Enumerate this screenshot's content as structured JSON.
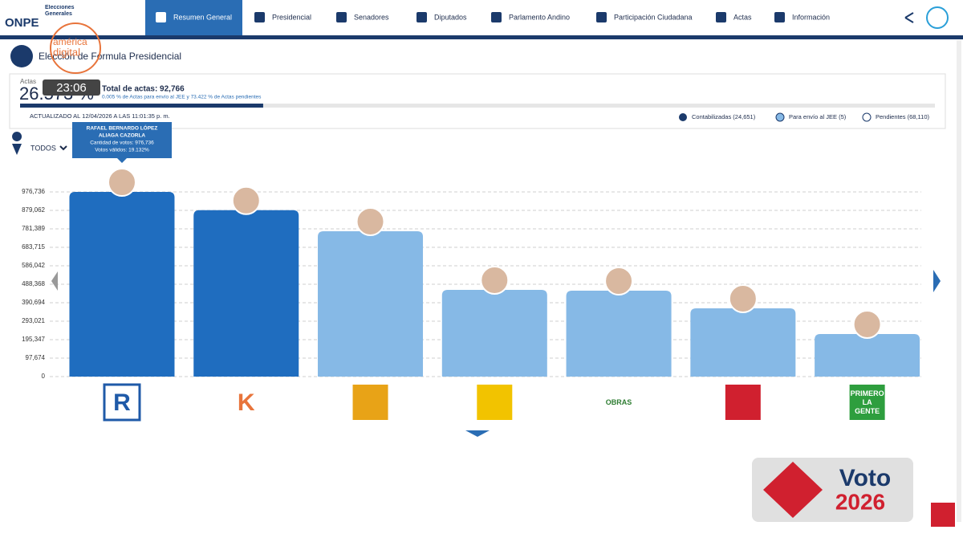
{
  "header": {
    "brand": "ONPE",
    "subtitle": "Elecciones Generales",
    "nav": [
      "Resumen General",
      "Presidencial",
      "Senadores",
      "Diputados",
      "Parlamento Andino",
      "Participación Ciudadana",
      "Actas",
      "Información"
    ]
  },
  "overlay": {
    "channel": [
      "américa",
      "digital"
    ],
    "clock": "23:06",
    "brand": [
      "Voto",
      "2026"
    ]
  },
  "title": "Elección de Fórmula Presidencial",
  "summary": {
    "actas_label": "Actas",
    "actas_percent": {
      "value": 26.573,
      "label": "26.573 %"
    },
    "total": "Total de actas: 92,766",
    "detail": "0.005 % de Actas para envío al JEE y 73.422 % de Actas pendientes",
    "updated": "ACTUALIZADO AL 12/04/2026 A LAS 11:01:35 p. m.",
    "legend": [
      "Contabilizadas (24,651)",
      "Para envío al JEE (5)",
      "Pendientes (68,110)"
    ]
  },
  "filter": "TODOS",
  "tooltip": {
    "name": [
      "RAFAEL BERNARDO LÓPEZ",
      "ALIAGA CAZORLA"
    ],
    "votes": "Cantidad de votos: 976,736",
    "valid": "Votos válidos: 19.132%"
  },
  "chart_data": {
    "type": "bar",
    "categories": [
      "R",
      "K",
      null,
      null,
      "OBRAS",
      null,
      "PRIMERO LA GENTE"
    ],
    "values": [
      976736,
      880000,
      768700,
      458700,
      454400,
      361000,
      225100
    ],
    "colors": [
      "#1f6dbf",
      "#1f6dbf",
      "#86b9e6",
      "#86b9e6",
      "#86b9e6",
      "#86b9e6",
      "#86b9e6"
    ],
    "ylim": [
      0,
      976736
    ],
    "yticks": [
      0,
      {
        "value": 97674,
        "label": "97,674"
      },
      {
        "value": 195347,
        "label": "195,347"
      },
      {
        "value": 293021,
        "label": "293,021"
      },
      {
        "value": 390694,
        "label": "390,694"
      },
      {
        "value": 488368,
        "label": "488,368"
      },
      {
        "value": 586042,
        "label": "586,042"
      },
      {
        "value": 683715,
        "label": "683,715"
      },
      {
        "value": 781389,
        "label": "781,389"
      },
      {
        "value": 879062,
        "label": "879,062"
      },
      {
        "value": 976736,
        "label": "976,736"
      }
    ],
    "grid": true
  }
}
